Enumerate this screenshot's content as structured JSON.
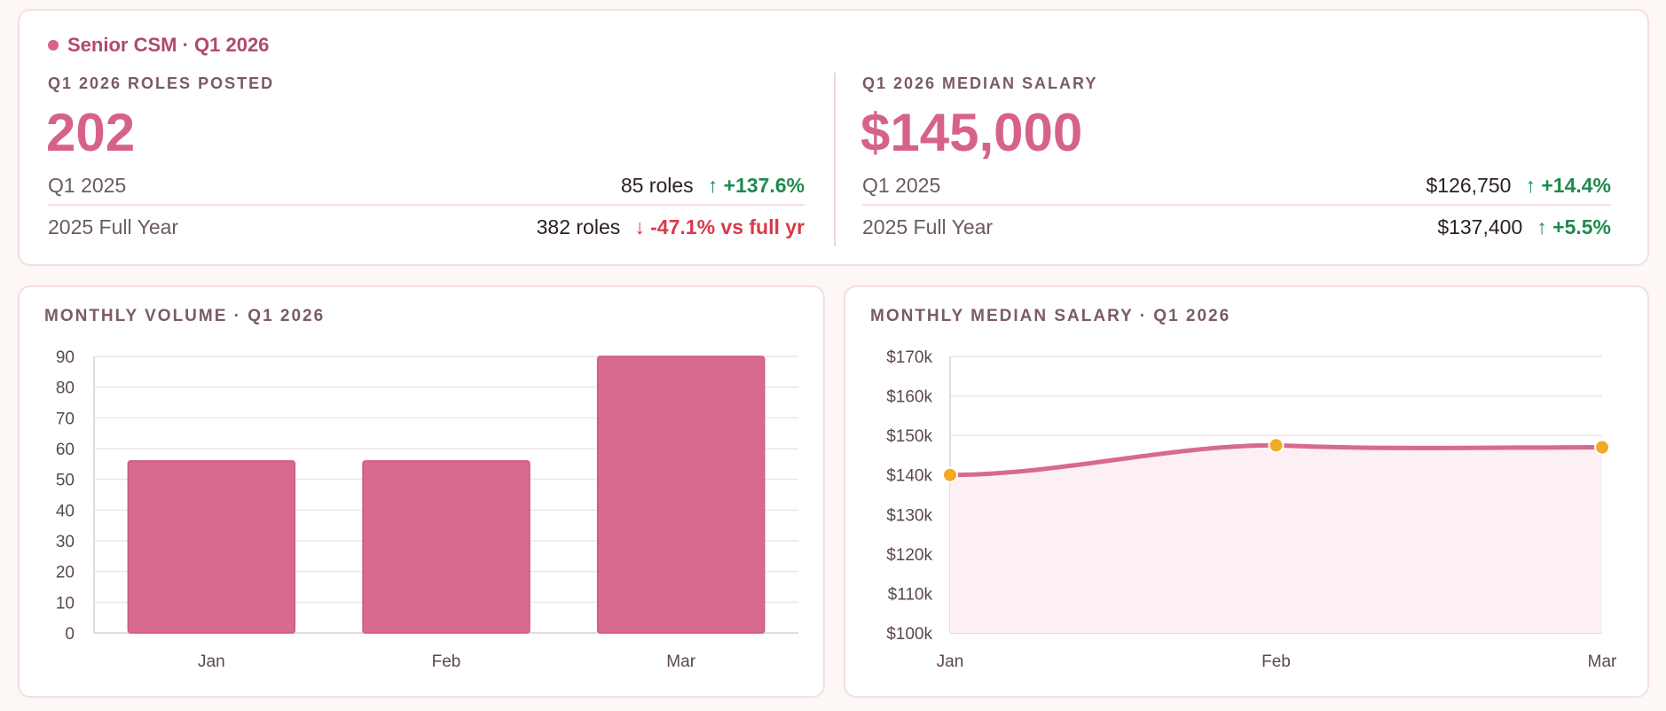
{
  "header": {
    "pill": "Senior CSM · Q1 2026"
  },
  "kpis": [
    {
      "label": "Q1 2026 ROLES POSTED",
      "value": "202",
      "comparisons": [
        {
          "name": "Q1 2025",
          "value": "85 roles",
          "change": "↑ +137.6%",
          "direction": "up"
        },
        {
          "name": "2025 Full Year",
          "value": "382 roles",
          "change": "↓ -47.1% vs full yr",
          "direction": "down"
        }
      ]
    },
    {
      "label": "Q1 2026 MEDIAN SALARY",
      "value": "$145,000",
      "comparisons": [
        {
          "name": "Q1 2025",
          "value": "$126,750",
          "change": "↑ +14.4%",
          "direction": "up"
        },
        {
          "name": "2025 Full Year",
          "value": "$137,400",
          "change": "↑ +5.5%",
          "direction": "up"
        }
      ]
    }
  ],
  "colors": {
    "accent": "#d6628c",
    "bar": "#d86990",
    "point": "#f2a925",
    "area": "#fdf0f4",
    "up": "#1f8a4c",
    "down": "#d93a4a"
  },
  "chart_data": [
    {
      "type": "bar",
      "title": "MONTHLY VOLUME · Q1 2026",
      "categories": [
        "Jan",
        "Feb",
        "Mar"
      ],
      "values": [
        56,
        56,
        90
      ],
      "ylim": [
        0,
        90
      ],
      "yticks": [
        0,
        10,
        20,
        30,
        40,
        50,
        60,
        70,
        80,
        90
      ],
      "ytick_labels": [
        "0",
        "10",
        "20",
        "30",
        "40",
        "50",
        "60",
        "70",
        "80",
        "90"
      ],
      "xlabel": "",
      "ylabel": ""
    },
    {
      "type": "line",
      "title": "MONTHLY MEDIAN SALARY · Q1 2026",
      "categories": [
        "Jan",
        "Feb",
        "Mar"
      ],
      "values": [
        140000,
        147500,
        147000
      ],
      "ylim": [
        100000,
        170000
      ],
      "yticks": [
        100000,
        110000,
        120000,
        130000,
        140000,
        150000,
        160000,
        170000
      ],
      "ytick_labels": [
        "$100k",
        "$110k",
        "$120k",
        "$130k",
        "$140k",
        "$150k",
        "$160k",
        "$170k"
      ],
      "xlabel": "",
      "ylabel": ""
    }
  ]
}
